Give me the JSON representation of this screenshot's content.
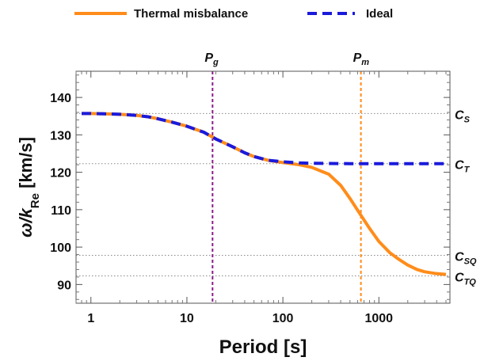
{
  "chart_data": {
    "type": "line",
    "xscale": "log",
    "xlim": [
      0.7,
      5500
    ],
    "ylim": [
      85,
      147
    ],
    "xlabel": "Period [s]",
    "ylabel": {
      "main": "ω/k",
      "sub": "Re",
      "unit": " [km/s]"
    },
    "xticks": [
      {
        "value": 1,
        "label": "1"
      },
      {
        "value": 10,
        "label": "10"
      },
      {
        "value": 100,
        "label": "100"
      },
      {
        "value": 1000,
        "label": "1000"
      }
    ],
    "yticks": [
      {
        "value": 90,
        "label": "90"
      },
      {
        "value": 100,
        "label": "100"
      },
      {
        "value": 110,
        "label": "110"
      },
      {
        "value": 120,
        "label": "120"
      },
      {
        "value": 130,
        "label": "130"
      },
      {
        "value": 140,
        "label": "140"
      }
    ],
    "legend": {
      "placement": "top"
    },
    "series": [
      {
        "name": "Thermal misbalance",
        "color": "#ff8c1a",
        "style": "solid",
        "points": [
          [
            0.8,
            135.7
          ],
          [
            1,
            135.7
          ],
          [
            1.5,
            135.6
          ],
          [
            2,
            135.5
          ],
          [
            3,
            135.2
          ],
          [
            4,
            134.8
          ],
          [
            5,
            134.3
          ],
          [
            7,
            133.4
          ],
          [
            10,
            132.3
          ],
          [
            15,
            130.7
          ],
          [
            20,
            128.9
          ],
          [
            30,
            126.8
          ],
          [
            40,
            125.2
          ],
          [
            50,
            124.2
          ],
          [
            70,
            123.2
          ],
          [
            100,
            122.6
          ],
          [
            150,
            122.0
          ],
          [
            200,
            121.3
          ],
          [
            300,
            119.5
          ],
          [
            400,
            116.5
          ],
          [
            500,
            113.0
          ],
          [
            650,
            108.5
          ],
          [
            800,
            105.0
          ],
          [
            1000,
            101.5
          ],
          [
            1300,
            98.5
          ],
          [
            1600,
            96.8
          ],
          [
            2000,
            95.2
          ],
          [
            2500,
            94.0
          ],
          [
            3000,
            93.4
          ],
          [
            4000,
            92.9
          ],
          [
            5000,
            92.7
          ]
        ]
      },
      {
        "name": "Ideal",
        "color": "#1a1adc",
        "style": "dashed",
        "points": [
          [
            0.8,
            135.7
          ],
          [
            1,
            135.7
          ],
          [
            1.5,
            135.6
          ],
          [
            2,
            135.5
          ],
          [
            3,
            135.2
          ],
          [
            4,
            134.8
          ],
          [
            5,
            134.3
          ],
          [
            7,
            133.4
          ],
          [
            10,
            132.3
          ],
          [
            15,
            130.7
          ],
          [
            20,
            128.9
          ],
          [
            30,
            126.8
          ],
          [
            40,
            125.2
          ],
          [
            50,
            124.2
          ],
          [
            70,
            123.2
          ],
          [
            100,
            122.8
          ],
          [
            150,
            122.5
          ],
          [
            200,
            122.4
          ],
          [
            500,
            122.3
          ],
          [
            1000,
            122.3
          ],
          [
            5000,
            122.3
          ]
        ]
      }
    ],
    "hlines": [
      {
        "value": 135.7,
        "label": "C",
        "sub": "S"
      },
      {
        "value": 122.3,
        "label": "C",
        "sub": "T"
      },
      {
        "value": 97.8,
        "label": "C",
        "sub": "SQ"
      },
      {
        "value": 92.3,
        "label": "C",
        "sub": "TQ"
      }
    ],
    "vlines": [
      {
        "value": 18.5,
        "label": "P",
        "sub": "g",
        "color": "#8b1a8b"
      },
      {
        "value": 650,
        "label": "P",
        "sub": "m",
        "color": "#ff8c1a"
      }
    ]
  }
}
